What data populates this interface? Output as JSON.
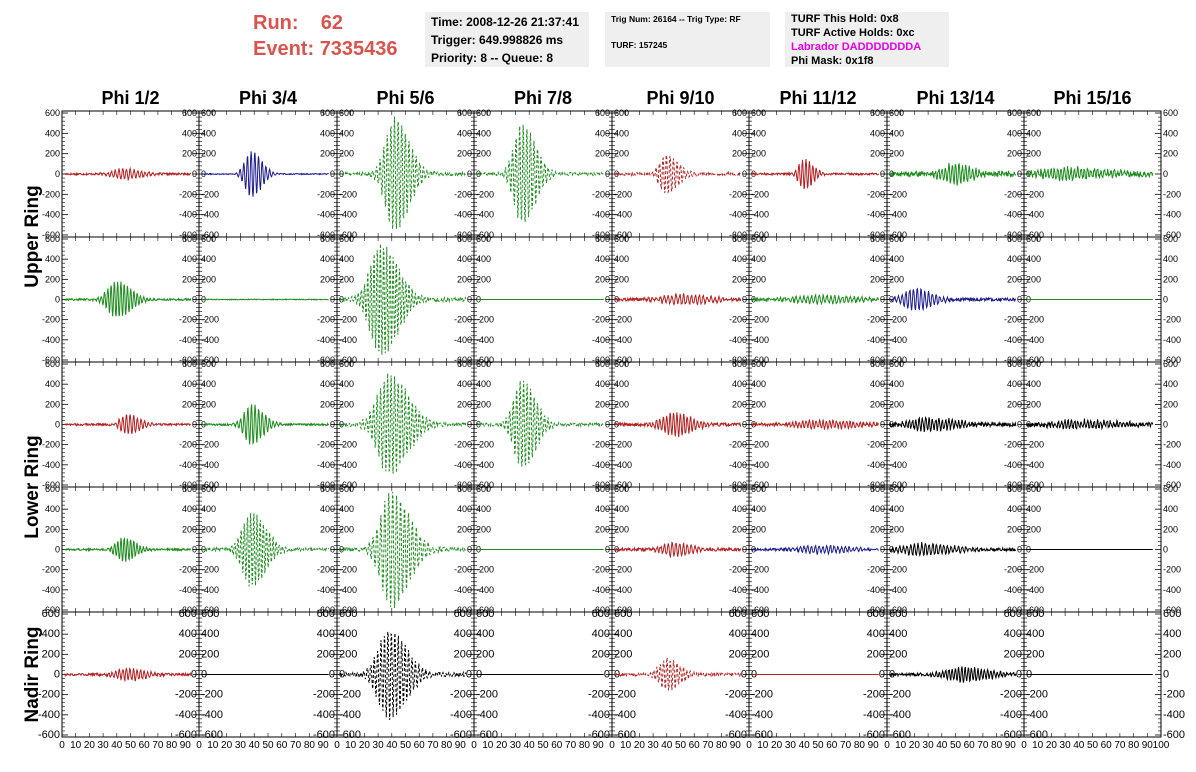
{
  "header": {
    "run_label": "Run:",
    "run_value": "62",
    "event_label": "Event:",
    "event_value": "7335436",
    "time": "Time: 2008-12-26 21:37:41",
    "trigger": "Trigger: 649.998826 ms",
    "priority": "Priority: 8 -- Queue: 8",
    "trig_num": "Trig Num: 26164 -- Trig Type: RF",
    "turf": "TURF: 157245",
    "turf_this_hold": "TURF This Hold: 0x8",
    "turf_active_holds": "TURF Active Holds: 0xc",
    "labrador": "Labrador DADDDDDDDA",
    "phi_mask": "Phi Mask: 0x1f8"
  },
  "colors": {
    "red": "#b22222",
    "blue": "#1c1c8c",
    "green": "#1e8c1e",
    "black": "#000000",
    "header_red": "#d9534f",
    "magenta": "#e600e6"
  },
  "chart_data": {
    "type": "line",
    "columns": [
      "Phi 1/2",
      "Phi 3/4",
      "Phi 5/6",
      "Phi 7/8",
      "Phi 9/10",
      "Phi 11/12",
      "Phi 13/14",
      "Phi 15/16"
    ],
    "row_groups": [
      "Upper Ring",
      "Lower Ring",
      "Nadir Ring"
    ],
    "xlim": [
      0,
      100
    ],
    "ylim": [
      -620,
      620
    ],
    "x_ticks": [
      0,
      10,
      20,
      30,
      40,
      50,
      60,
      70,
      80,
      90,
      100
    ],
    "x_tick_labels": [
      "0",
      "10",
      "20",
      "30",
      "40",
      "50",
      "60",
      "70",
      "80",
      "90",
      "100"
    ],
    "y_ticks": [
      -600,
      -400,
      -200,
      0,
      200,
      400,
      600
    ],
    "y_tick_labels": [
      "-600",
      "-400",
      "-200",
      "0",
      "200",
      "400",
      "600"
    ],
    "panels": [
      {
        "row": 0,
        "col": 0,
        "color": "red",
        "dashed": false,
        "center": 45,
        "amp": 50,
        "width": 12,
        "noise": 10
      },
      {
        "row": 0,
        "col": 1,
        "color": "blue",
        "dashed": false,
        "center": 38,
        "amp": 230,
        "width": 7,
        "noise": 5
      },
      {
        "row": 0,
        "col": 2,
        "color": "green",
        "dashed": true,
        "center": 42,
        "amp": 560,
        "width": 10,
        "noise": 15
      },
      {
        "row": 0,
        "col": 3,
        "color": "green",
        "dashed": true,
        "center": 35,
        "amp": 500,
        "width": 9,
        "noise": 15
      },
      {
        "row": 0,
        "col": 4,
        "color": "red",
        "dashed": true,
        "center": 40,
        "amp": 200,
        "width": 8,
        "noise": 15
      },
      {
        "row": 0,
        "col": 5,
        "color": "red",
        "dashed": false,
        "center": 40,
        "amp": 150,
        "width": 6,
        "noise": 10
      },
      {
        "row": 0,
        "col": 6,
        "color": "green",
        "dashed": false,
        "center": 48,
        "amp": 100,
        "width": 12,
        "noise": 25
      },
      {
        "row": 0,
        "col": 7,
        "color": "green",
        "dashed": false,
        "center": 30,
        "amp": 60,
        "width": 25,
        "noise": 25
      },
      {
        "row": 1,
        "col": 0,
        "color": "green",
        "dashed": false,
        "center": 40,
        "amp": 180,
        "width": 10,
        "noise": 10
      },
      {
        "row": 1,
        "col": 1,
        "color": "green",
        "dashed": false,
        "center": 50,
        "amp": 0,
        "width": 10,
        "noise": 4
      },
      {
        "row": 1,
        "col": 2,
        "color": "green",
        "dashed": true,
        "center": 32,
        "amp": 560,
        "width": 12,
        "noise": 20
      },
      {
        "row": 1,
        "col": 3,
        "color": "green",
        "dashed": false,
        "center": 50,
        "amp": 0,
        "width": 10,
        "noise": 0
      },
      {
        "row": 1,
        "col": 4,
        "color": "red",
        "dashed": false,
        "center": 50,
        "amp": 50,
        "width": 20,
        "noise": 15
      },
      {
        "row": 1,
        "col": 5,
        "color": "green",
        "dashed": false,
        "center": 50,
        "amp": 40,
        "width": 25,
        "noise": 15
      },
      {
        "row": 1,
        "col": 6,
        "color": "blue",
        "dashed": false,
        "center": 20,
        "amp": 110,
        "width": 12,
        "noise": 15
      },
      {
        "row": 1,
        "col": 7,
        "color": "green",
        "dashed": false,
        "center": 50,
        "amp": 0,
        "width": 10,
        "noise": 0
      },
      {
        "row": 2,
        "col": 0,
        "color": "red",
        "dashed": false,
        "center": 48,
        "amp": 100,
        "width": 8,
        "noise": 10
      },
      {
        "row": 2,
        "col": 1,
        "color": "green",
        "dashed": false,
        "center": 38,
        "amp": 200,
        "width": 8,
        "noise": 10
      },
      {
        "row": 2,
        "col": 2,
        "color": "green",
        "dashed": true,
        "center": 38,
        "amp": 500,
        "width": 13,
        "noise": 20
      },
      {
        "row": 2,
        "col": 3,
        "color": "green",
        "dashed": true,
        "center": 35,
        "amp": 450,
        "width": 9,
        "noise": 15
      },
      {
        "row": 2,
        "col": 4,
        "color": "red",
        "dashed": false,
        "center": 45,
        "amp": 120,
        "width": 12,
        "noise": 15
      },
      {
        "row": 2,
        "col": 5,
        "color": "red",
        "dashed": false,
        "center": 50,
        "amp": 40,
        "width": 25,
        "noise": 15
      },
      {
        "row": 2,
        "col": 6,
        "color": "black",
        "dashed": false,
        "center": 30,
        "amp": 60,
        "width": 20,
        "noise": 20
      },
      {
        "row": 2,
        "col": 7,
        "color": "black",
        "dashed": false,
        "center": 40,
        "amp": 40,
        "width": 25,
        "noise": 20
      },
      {
        "row": 3,
        "col": 0,
        "color": "green",
        "dashed": false,
        "center": 45,
        "amp": 120,
        "width": 8,
        "noise": 10
      },
      {
        "row": 3,
        "col": 1,
        "color": "green",
        "dashed": true,
        "center": 38,
        "amp": 380,
        "width": 10,
        "noise": 15
      },
      {
        "row": 3,
        "col": 2,
        "color": "green",
        "dashed": true,
        "center": 40,
        "amp": 580,
        "width": 12,
        "noise": 20
      },
      {
        "row": 3,
        "col": 3,
        "color": "green",
        "dashed": false,
        "center": 50,
        "amp": 0,
        "width": 10,
        "noise": 0
      },
      {
        "row": 3,
        "col": 4,
        "color": "red",
        "dashed": false,
        "center": 45,
        "amp": 70,
        "width": 12,
        "noise": 15
      },
      {
        "row": 3,
        "col": 5,
        "color": "blue",
        "dashed": false,
        "center": 50,
        "amp": 40,
        "width": 20,
        "noise": 12
      },
      {
        "row": 3,
        "col": 6,
        "color": "black",
        "dashed": false,
        "center": 25,
        "amp": 60,
        "width": 20,
        "noise": 15
      },
      {
        "row": 3,
        "col": 7,
        "color": "black",
        "dashed": false,
        "center": 50,
        "amp": 0,
        "width": 10,
        "noise": 0
      },
      {
        "row": 4,
        "col": 0,
        "color": "red",
        "dashed": false,
        "center": 48,
        "amp": 60,
        "width": 12,
        "noise": 12
      },
      {
        "row": 4,
        "col": 1,
        "color": "black",
        "dashed": false,
        "center": 50,
        "amp": 0,
        "width": 10,
        "noise": 0
      },
      {
        "row": 4,
        "col": 2,
        "color": "black",
        "dashed": true,
        "center": 38,
        "amp": 450,
        "width": 12,
        "noise": 20
      },
      {
        "row": 4,
        "col": 3,
        "color": "black",
        "dashed": false,
        "center": 50,
        "amp": 0,
        "width": 10,
        "noise": 0
      },
      {
        "row": 4,
        "col": 4,
        "color": "red",
        "dashed": true,
        "center": 40,
        "amp": 160,
        "width": 9,
        "noise": 15
      },
      {
        "row": 4,
        "col": 5,
        "color": "red",
        "dashed": false,
        "center": 50,
        "amp": 0,
        "width": 10,
        "noise": 0
      },
      {
        "row": 4,
        "col": 6,
        "color": "black",
        "dashed": false,
        "center": 55,
        "amp": 70,
        "width": 18,
        "noise": 15
      },
      {
        "row": 4,
        "col": 7,
        "color": "black",
        "dashed": false,
        "center": 50,
        "amp": 0,
        "width": 10,
        "noise": 0
      }
    ]
  }
}
